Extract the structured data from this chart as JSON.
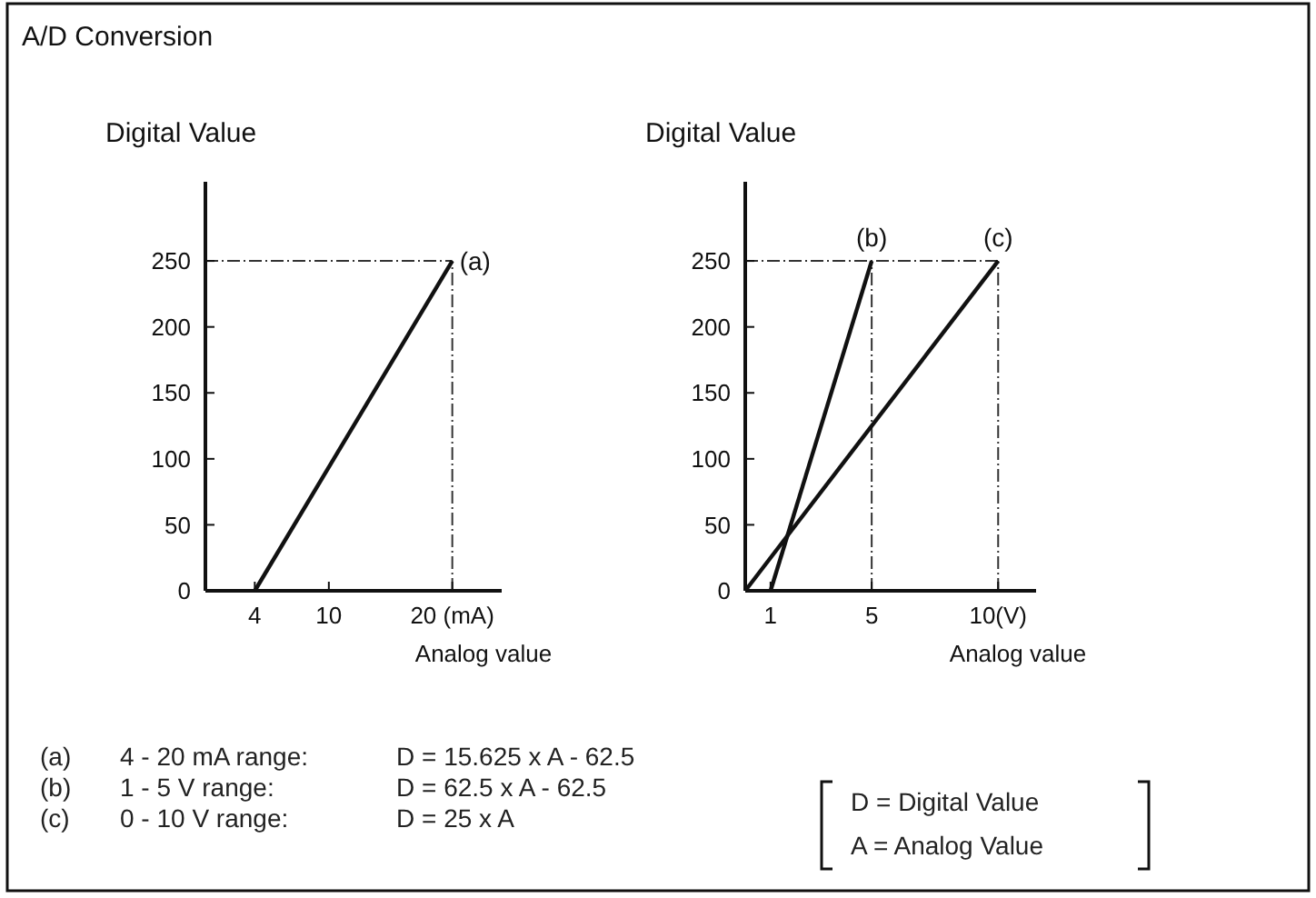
{
  "chart_data": [
    {
      "type": "line",
      "title": "A/D Conversion",
      "ylabel": "Digital Value",
      "xlabel": "Analog value",
      "xlim": [
        0,
        24
      ],
      "ylim": [
        0,
        310
      ],
      "xticks": [
        4,
        10,
        {
          "value": 20,
          "label": "20 (mA)"
        }
      ],
      "yticks": [
        0,
        50,
        100,
        150,
        200,
        250
      ],
      "series": [
        {
          "name": "(a)",
          "color": "#111111",
          "x": [
            4,
            20
          ],
          "values": [
            0,
            250
          ]
        }
      ],
      "ref_lines": [
        {
          "axis": "y",
          "value": 250,
          "line_style": "dashed",
          "color": "#333333"
        },
        {
          "axis": "x",
          "value": 20,
          "line_style": "dashed",
          "color": "#333333"
        }
      ],
      "annotations": [
        "(a)",
        "4 - 20 mA range:",
        "D = 15.625 x A - 62.5",
        "(b)",
        "1 - 5 V range:",
        "D = 62.5 x A - 62.5",
        "(c)",
        "0 - 10 V range:",
        "D = 25 x A",
        "D = Digital Value",
        "A = Analog Value"
      ]
    },
    {
      "type": "line",
      "ylabel": "Digital Value",
      "xlabel": "Analog value",
      "xlim": [
        0,
        11.5
      ],
      "ylim": [
        0,
        310
      ],
      "xticks": [
        1,
        5,
        {
          "value": 10,
          "label": "10(V)"
        }
      ],
      "yticks": [
        0,
        50,
        100,
        150,
        200,
        250
      ],
      "series": [
        {
          "name": "(b)",
          "color": "#111111",
          "x": [
            1,
            5
          ],
          "values": [
            0,
            250
          ]
        },
        {
          "name": "(c)",
          "color": "#111111",
          "x": [
            0,
            10
          ],
          "values": [
            0,
            250
          ]
        }
      ],
      "ref_lines": [
        {
          "axis": "y",
          "value": 250,
          "line_style": "dashed",
          "color": "#333333"
        },
        {
          "axis": "x",
          "value": 5,
          "line_style": "dashed",
          "color": "#333333"
        },
        {
          "axis": "x",
          "value": 10,
          "line_style": "dashed",
          "color": "#333333"
        }
      ]
    }
  ]
}
